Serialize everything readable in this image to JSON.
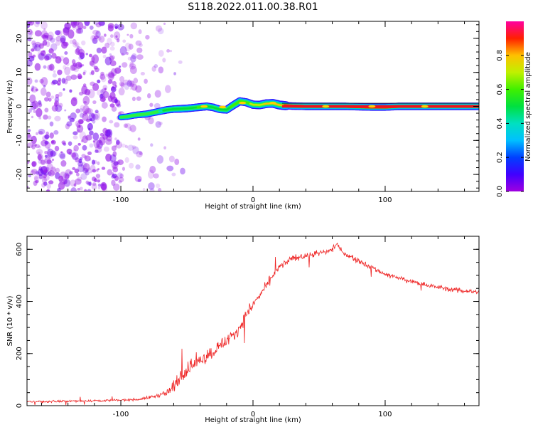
{
  "title": "S118.2022.011.00.38.R01",
  "chart_data": [
    {
      "type": "heatmap",
      "xlabel": "Height of straight line (km)",
      "ylabel": "Frequency (Hz)",
      "xlim": [
        -171,
        171
      ],
      "ylim": [
        -25,
        25
      ],
      "x_ticks": [
        -100,
        0,
        100
      ],
      "x_tick_labels": [
        "-100",
        "0",
        "100"
      ],
      "y_ticks": [
        -20,
        -10,
        0,
        10,
        20
      ],
      "y_tick_labels": [
        "-20",
        "-10",
        "0",
        "10",
        "20"
      ],
      "colorbar": {
        "label": "Normalized spectral amplitude",
        "ticks": [
          0.0,
          0.2,
          0.4,
          0.6,
          0.8
        ],
        "tick_labels": [
          "0.0",
          "0.2",
          "0.4",
          "0.6",
          "0.8"
        ],
        "range": [
          0,
          1
        ],
        "colormap": "rainbow (purple→blue→cyan→green→yellow→red→magenta)"
      },
      "ridge": {
        "height_km": [
          -100,
          -95,
          -90,
          -85,
          -80,
          -75,
          -70,
          -65,
          -60,
          -55,
          -50,
          -45,
          -40,
          -35,
          -30,
          -25,
          -20,
          -15,
          -10,
          -5,
          0,
          5,
          10,
          15,
          20,
          25,
          30,
          40,
          50,
          60,
          70,
          80,
          90,
          100,
          110,
          120,
          130,
          140,
          150,
          160,
          171
        ],
        "frequency_hz": [
          -3.2,
          -3.0,
          -2.6,
          -2.4,
          -2.2,
          -1.8,
          -1.4,
          -1.0,
          -0.8,
          -0.7,
          -0.6,
          -0.4,
          -0.2,
          0.0,
          -0.3,
          -0.9,
          -1.0,
          0.3,
          1.5,
          1.2,
          0.5,
          0.4,
          0.8,
          0.9,
          0.4,
          0.2,
          0.1,
          0.0,
          0.0,
          0.0,
          0.0,
          -0.1,
          -0.2,
          -0.2,
          0.0,
          0.0,
          0.0,
          0.0,
          0.0,
          0.0,
          0.0
        ],
        "amplitude": [
          0.25,
          0.3,
          0.35,
          0.4,
          0.45,
          0.45,
          0.5,
          0.55,
          0.55,
          0.6,
          0.6,
          0.6,
          0.65,
          0.65,
          0.6,
          0.55,
          0.6,
          0.65,
          0.7,
          0.7,
          0.75,
          0.8,
          0.85,
          0.85,
          0.9,
          0.95,
          1.0,
          1.0,
          1.0,
          1.0,
          1.0,
          1.0,
          1.0,
          1.0,
          1.0,
          1.0,
          1.0,
          1.0,
          1.0,
          1.0,
          1.0
        ]
      },
      "noise_region_km": [
        -171,
        -80
      ],
      "colors": {
        "ridge_core": "#ff0000",
        "noise": "#8800ee"
      }
    },
    {
      "type": "line",
      "xlabel": "Height of straight line (km)",
      "ylabel": "SNR (10 * v/v)",
      "xlim": [
        -171,
        171
      ],
      "ylim": [
        0,
        650
      ],
      "x_ticks": [
        -100,
        0,
        100
      ],
      "x_tick_labels": [
        "-100",
        "0",
        "100"
      ],
      "y_ticks": [
        0,
        200,
        400,
        600
      ],
      "y_tick_labels": [
        "0",
        "200",
        "400",
        "600"
      ],
      "series": [
        {
          "color": "#ee2222",
          "x": [
            -171,
            -150,
            -130,
            -110,
            -95,
            -85,
            -75,
            -65,
            -60,
            -55,
            -50,
            -45,
            -40,
            -35,
            -30,
            -25,
            -20,
            -15,
            -10,
            -5,
            0,
            5,
            10,
            15,
            20,
            25,
            30,
            35,
            40,
            45,
            50,
            55,
            60,
            63,
            65,
            70,
            75,
            80,
            90,
            100,
            110,
            120,
            130,
            140,
            150,
            160,
            171
          ],
          "y": [
            15,
            16,
            18,
            20,
            22,
            25,
            35,
            50,
            70,
            110,
            140,
            160,
            175,
            190,
            210,
            230,
            250,
            270,
            300,
            350,
            390,
            420,
            460,
            500,
            530,
            550,
            565,
            570,
            575,
            580,
            585,
            590,
            600,
            620,
            605,
            580,
            570,
            555,
            530,
            505,
            490,
            475,
            465,
            455,
            445,
            440,
            435
          ],
          "noise": [
            6,
            6,
            6,
            6,
            6,
            8,
            10,
            20,
            35,
            40,
            40,
            45,
            40,
            40,
            40,
            40,
            40,
            40,
            35,
            30,
            28,
            25,
            25,
            22,
            20,
            20,
            18,
            18,
            18,
            18,
            18,
            18,
            20,
            25,
            18,
            15,
            15,
            15,
            15,
            15,
            14,
            14,
            14,
            14,
            14,
            14,
            14
          ]
        }
      ]
    }
  ]
}
